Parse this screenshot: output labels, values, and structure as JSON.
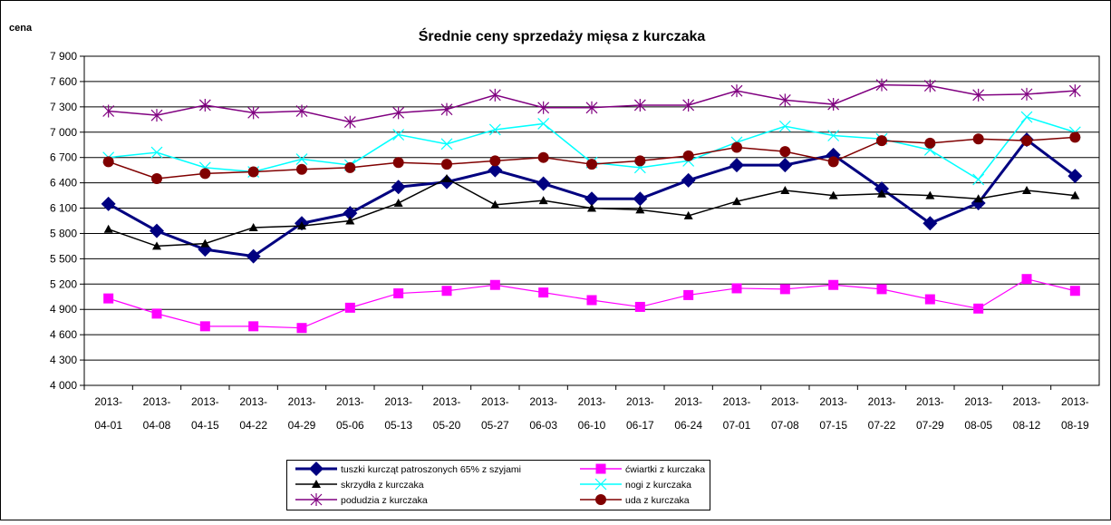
{
  "chart_data": {
    "type": "line",
    "title": "Średnie ceny sprzedaży mięsa z kurczaka",
    "y_label": "cena",
    "categories": [
      "2013-04-01",
      "2013-04-08",
      "2013-04-15",
      "2013-04-22",
      "2013-04-29",
      "2013-05-06",
      "2013-05-13",
      "2013-05-20",
      "2013-05-27",
      "2013-06-03",
      "2013-06-10",
      "2013-06-17",
      "2013-06-24",
      "2013-07-01",
      "2013-07-08",
      "2013-07-15",
      "2013-07-22",
      "2013-07-29",
      "2013-08-05",
      "2013-08-12",
      "2013-08-19"
    ],
    "ylim": [
      4000,
      7900
    ],
    "yticks": [
      {
        "value": 4000,
        "label": "4 000"
      },
      {
        "value": 4300,
        "label": "4 300"
      },
      {
        "value": 4600,
        "label": "4 600"
      },
      {
        "value": 4900,
        "label": "4 900"
      },
      {
        "value": 5200,
        "label": "5 200"
      },
      {
        "value": 5500,
        "label": "5 500"
      },
      {
        "value": 5800,
        "label": "5 800"
      },
      {
        "value": 6100,
        "label": "6 100"
      },
      {
        "value": 6400,
        "label": "6 400"
      },
      {
        "value": 6700,
        "label": "6 700"
      },
      {
        "value": 7000,
        "label": "7 000"
      },
      {
        "value": 7300,
        "label": "7 300"
      },
      {
        "value": 7600,
        "label": "7 600"
      },
      {
        "value": 7900,
        "label": "7 900"
      }
    ],
    "grid": true,
    "series": [
      {
        "name": "tuszki kurcząt patroszonych 65% z szyjami",
        "color": "#000080",
        "marker": "diamond",
        "values": [
          6150,
          5830,
          5610,
          5530,
          5920,
          6040,
          6350,
          6410,
          6550,
          6390,
          6210,
          6210,
          6430,
          6610,
          6610,
          6730,
          6330,
          5920,
          6160,
          6910,
          6480
        ]
      },
      {
        "name": "ćwiartki z kurczaka",
        "color": "#ff00ff",
        "marker": "square",
        "values": [
          5030,
          4850,
          4700,
          4700,
          4680,
          4920,
          5090,
          5120,
          5190,
          5100,
          5010,
          4930,
          5070,
          5150,
          5140,
          5190,
          5140,
          5020,
          4910,
          5260,
          5120
        ]
      },
      {
        "name": "skrzydła z kurczaka",
        "color": "#000000",
        "marker": "triangle",
        "values": [
          5850,
          5650,
          5680,
          5870,
          5890,
          5950,
          6160,
          6450,
          6140,
          6190,
          6100,
          6080,
          6010,
          6180,
          6310,
          6250,
          6270,
          6250,
          6210,
          6310,
          6250
        ]
      },
      {
        "name": "nogi z kurczaka",
        "color": "#00ffff",
        "marker": "x",
        "values": [
          6700,
          6760,
          6580,
          6530,
          6680,
          6610,
          6970,
          6860,
          7030,
          7100,
          6640,
          6580,
          6660,
          6880,
          7070,
          6960,
          6920,
          6790,
          6440,
          7180,
          7000
        ]
      },
      {
        "name": "podudzia z kurczaka",
        "color": "#800080",
        "marker": "star",
        "values": [
          7250,
          7200,
          7320,
          7230,
          7250,
          7120,
          7230,
          7270,
          7440,
          7290,
          7290,
          7320,
          7320,
          7490,
          7380,
          7330,
          7560,
          7550,
          7440,
          7450,
          7490
        ]
      },
      {
        "name": "uda z kurczaka",
        "color": "#800000",
        "marker": "circle",
        "values": [
          6650,
          6450,
          6510,
          6530,
          6560,
          6580,
          6640,
          6620,
          6660,
          6700,
          6620,
          6660,
          6720,
          6820,
          6770,
          6650,
          6900,
          6870,
          6920,
          6900,
          6940
        ]
      }
    ]
  }
}
